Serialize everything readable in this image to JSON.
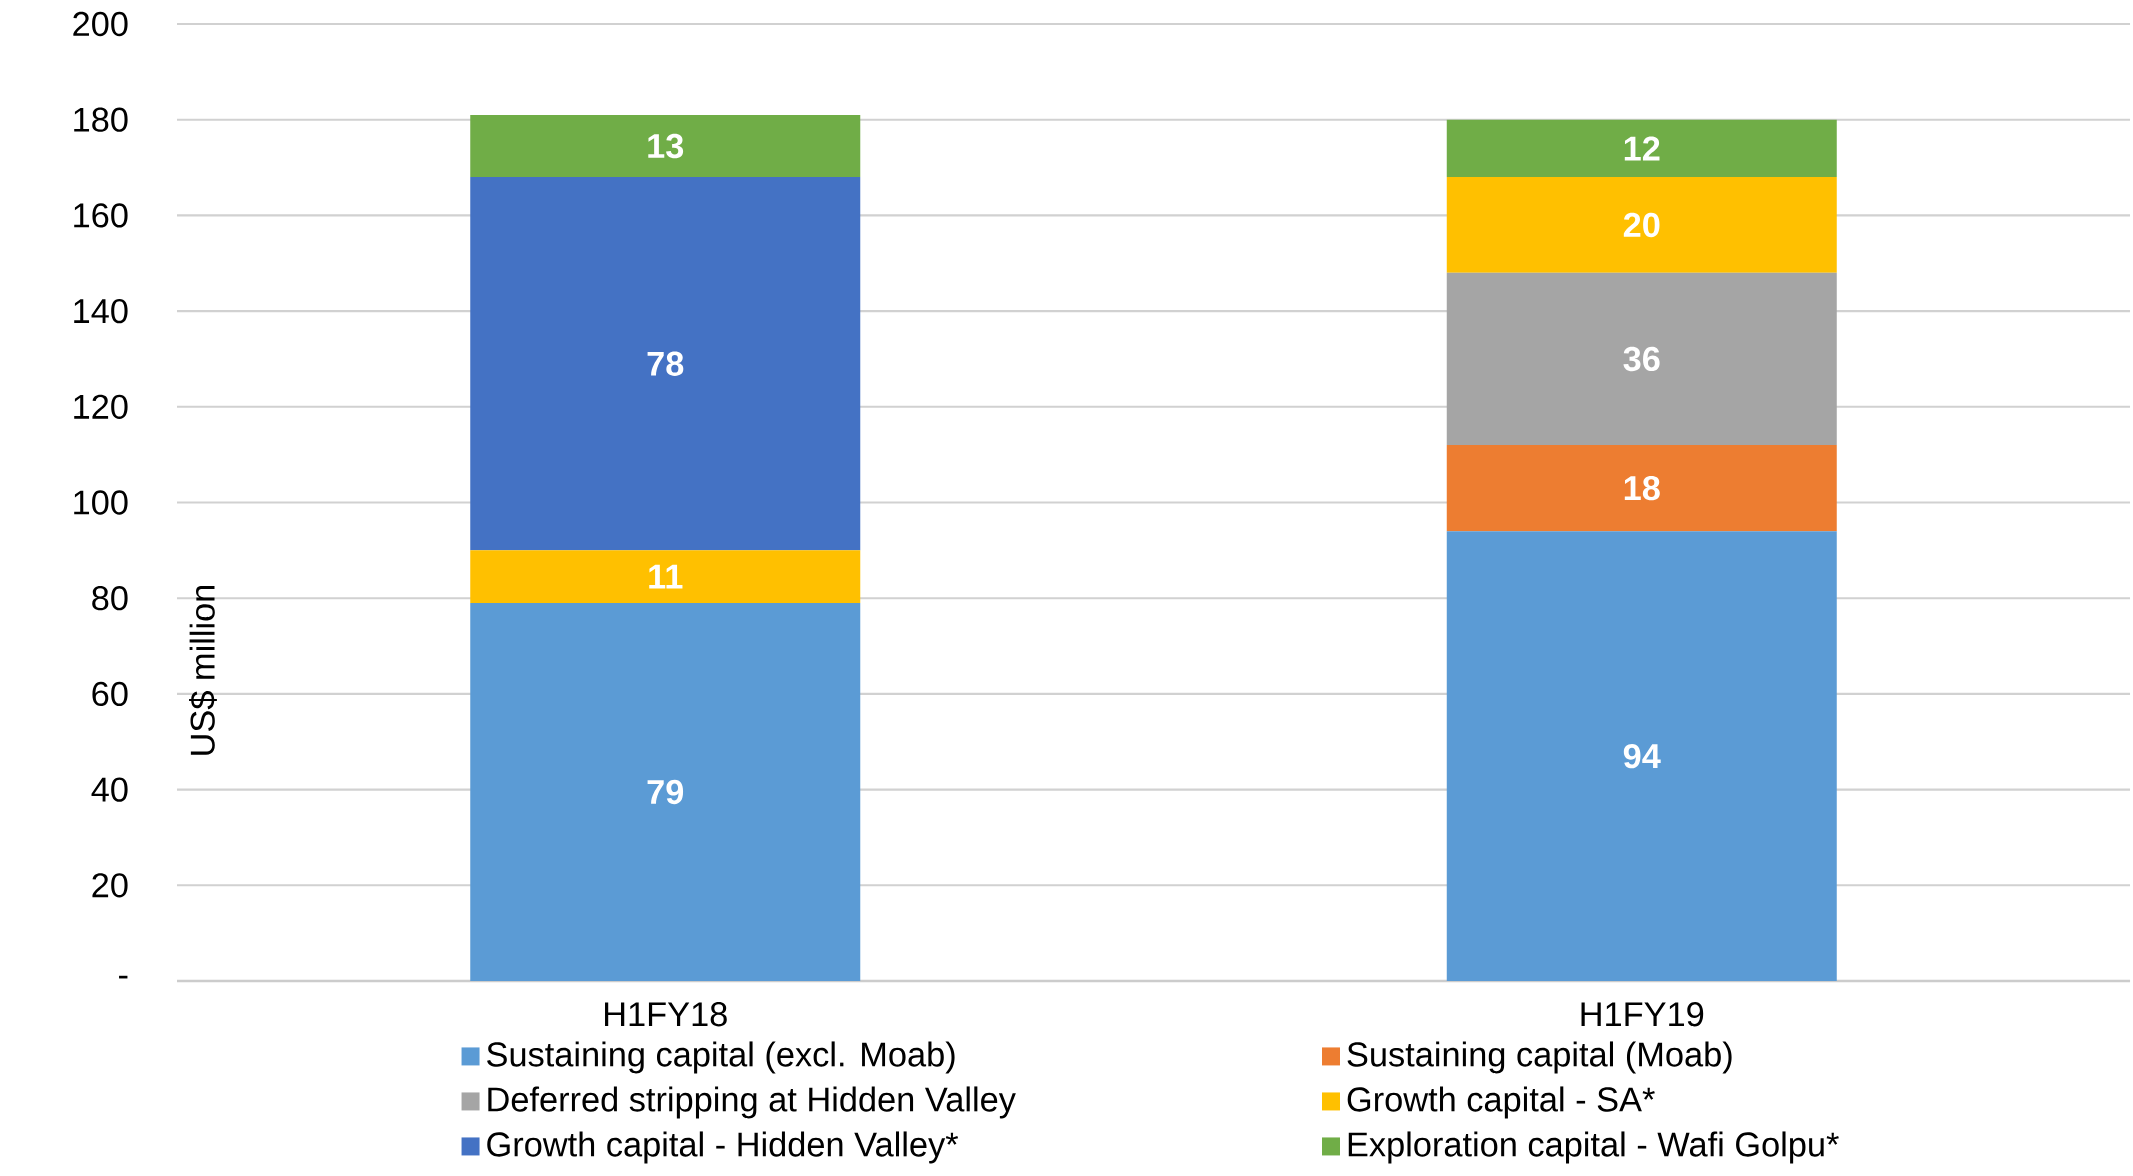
{
  "chart_data": {
    "type": "bar",
    "stacked": true,
    "ylabel": "US$ million",
    "categories": [
      "H1FY18",
      "H1FY19"
    ],
    "series": [
      {
        "name": "Sustaining capital (excl. Moab)",
        "color": "#5b9bd5",
        "values": [
          79,
          94
        ]
      },
      {
        "name": "Sustaining capital (Moab)",
        "color": "#ed7d31",
        "values": [
          null,
          18
        ]
      },
      {
        "name": "Deferred stripping at Hidden Valley",
        "color": "#a5a5a5",
        "values": [
          null,
          36
        ]
      },
      {
        "name": "Growth capital - SA*",
        "color": "#ffc000",
        "values": [
          11,
          20
        ]
      },
      {
        "name": "Growth capital - Hidden Valley*",
        "color": "#4472c4",
        "values": [
          78,
          null
        ]
      },
      {
        "name": "Exploration capital - Wafi Golpu*",
        "color": "#70ad47",
        "values": [
          13,
          12
        ]
      }
    ],
    "ylim": [
      0,
      200
    ],
    "yticks": [
      {
        "value": 0,
        "label": "-"
      },
      20,
      40,
      60,
      80,
      100,
      120,
      140,
      160,
      180,
      200
    ],
    "grid": "y",
    "legend": "bottom",
    "data_labels": true
  }
}
